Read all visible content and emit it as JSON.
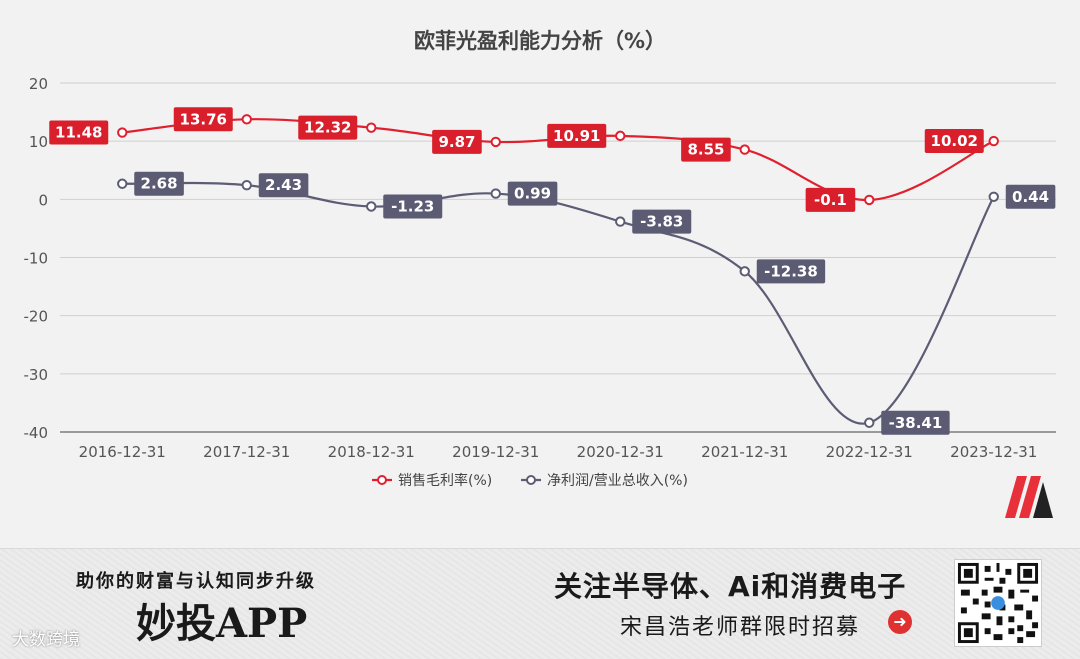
{
  "chart_data": {
    "type": "line",
    "title": "欧菲光盈利能力分析（%）",
    "categories": [
      "2016-12-31",
      "2017-12-31",
      "2018-12-31",
      "2019-12-31",
      "2020-12-31",
      "2021-12-31",
      "2022-12-31",
      "2023-12-31"
    ],
    "ylim": [
      -40,
      20
    ],
    "yticks": [
      20,
      10,
      0,
      -10,
      -20,
      -30,
      -40
    ],
    "grid": true,
    "legend_position": "bottom",
    "series": [
      {
        "name": "销售毛利率(%)",
        "color": "#e0202e",
        "values": [
          11.48,
          13.76,
          12.32,
          9.87,
          10.91,
          8.55,
          -0.1,
          10.02
        ],
        "labels": [
          "11.48",
          "13.76",
          "12.32",
          "9.87",
          "10.91",
          "8.55",
          "-0.1",
          "10.02"
        ]
      },
      {
        "name": "净利润/营业总收入(%)",
        "color": "#5c5c75",
        "values": [
          2.68,
          2.43,
          -1.23,
          0.99,
          -3.83,
          -12.38,
          -38.41,
          0.44
        ],
        "labels": [
          "2.68",
          "2.43",
          "-1.23",
          "0.99",
          "-3.83",
          "-12.38",
          "-38.41",
          "0.44"
        ]
      }
    ]
  },
  "banner": {
    "tagline": "助你的财富与认知同步升级",
    "app_name": "妙投APP",
    "headline": "关注半导体、Ai和消费电子",
    "subline": "宋昌浩老师群限时招募",
    "arrow_icon": "arrow-right-circle-icon",
    "qr_icon": "qr-code-icon",
    "watermark": "大数跨境"
  },
  "brand_logo": "m-logo-icon"
}
